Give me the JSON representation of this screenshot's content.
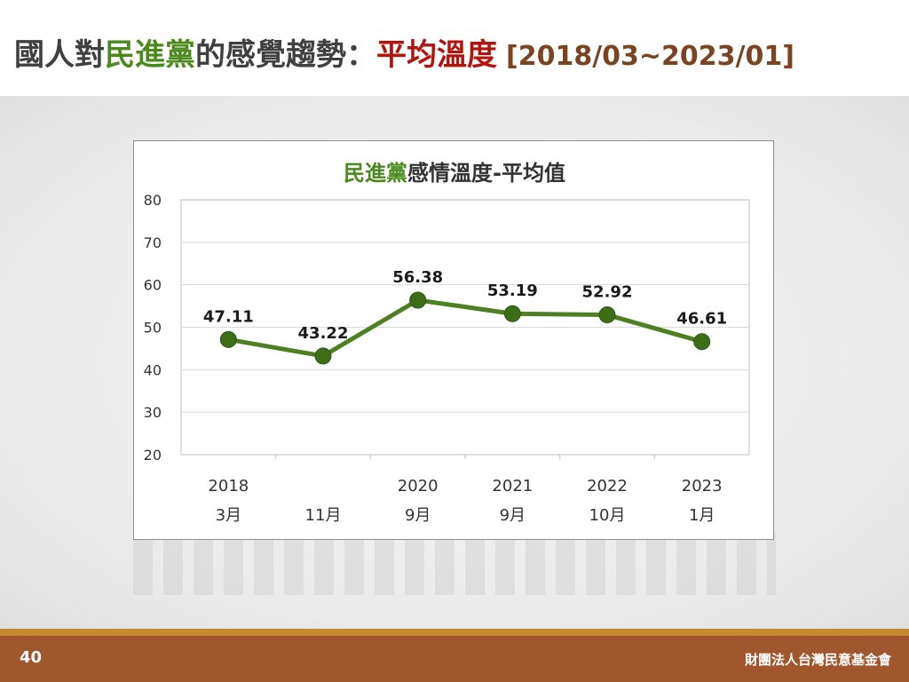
{
  "slide": {
    "title_prefix": "國人對",
    "title_party": "民進黨",
    "title_middle": "的感覺趨勢：",
    "title_metric": "平均溫度",
    "title_range": "[2018/03~2023/01]",
    "page_number": "40",
    "organization": "財團法人台灣民意基金會"
  },
  "colors": {
    "line": "#4f7f23",
    "marker": "#3c6e18",
    "party_green": "#4a8a1c",
    "metric_red": "#b0140e",
    "footer_brown": "#a0572e"
  },
  "chart_data": {
    "type": "line",
    "title_party": "民進黨",
    "title_rest": "感情溫度-平均值",
    "ylim": [
      20,
      80
    ],
    "yticks": [
      20,
      30,
      40,
      50,
      60,
      70,
      80
    ],
    "grid": true,
    "x_years": [
      "2018",
      "",
      "2020",
      "2021",
      "2022",
      "2023"
    ],
    "x_months": [
      "3月",
      "11月",
      "9月",
      "9月",
      "10月",
      "1月"
    ],
    "series": [
      {
        "values": [
          47.11,
          43.22,
          56.38,
          53.19,
          52.92,
          46.61
        ],
        "labels": [
          "47.11",
          "43.22",
          "56.38",
          "53.19",
          "52.92",
          "46.61"
        ]
      }
    ]
  }
}
